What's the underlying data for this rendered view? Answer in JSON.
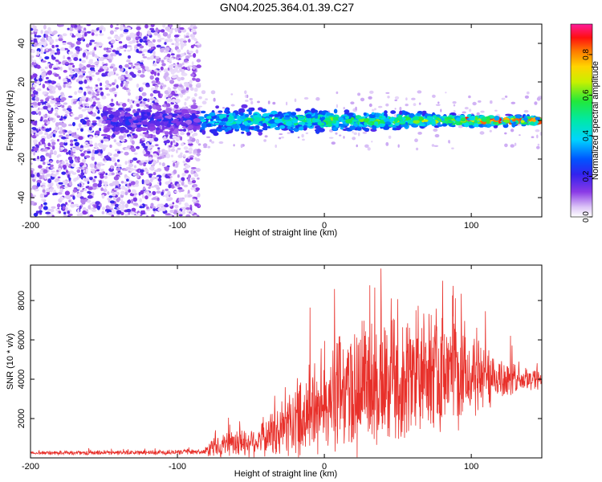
{
  "title": "GN04.2025.364.01.39.C27",
  "chart_data": [
    {
      "type": "heatmap",
      "xlabel": "Height of straight line (km)",
      "ylabel": "Frequency (Hz)",
      "xlim": [
        -200,
        148
      ],
      "ylim": [
        -50,
        50
      ],
      "xticks": [
        -200,
        -100,
        0,
        100
      ],
      "xtick_labels": [
        "-200",
        "-100",
        "0",
        "100"
      ],
      "yticks": [
        -40,
        -20,
        0,
        20,
        40
      ],
      "ytick_labels": [
        "-40",
        "-20",
        "0",
        "20",
        "40"
      ],
      "colorbar": {
        "label": "Normalized spectral amplitude",
        "range": [
          0,
          0.95
        ],
        "ticks": [
          0.0,
          0.2,
          0.4,
          0.6,
          0.8
        ],
        "tick_labels": [
          "0.0",
          "0.2",
          "0.4",
          "0.6",
          "0.8"
        ],
        "colormap": "rainbow (white-violet-blue-cyan-green-yellow-red-magenta)"
      },
      "features": {
        "noise_region_x": [
          -200,
          -85
        ],
        "ridge_center_hz": 0,
        "ridge_halfwidth_hz_near": 8,
        "ridge_halfwidth_hz_far": 2,
        "ridge_peak_amplitude": 0.9,
        "ridge_x": [
          -150,
          148
        ]
      }
    },
    {
      "type": "line",
      "xlabel": "Height of straight line (km)",
      "ylabel": "SNR (10 * v/v)",
      "xlim": [
        -200,
        148
      ],
      "ylim": [
        0,
        9800
      ],
      "xticks": [
        -200,
        -100,
        0,
        100
      ],
      "xtick_labels": [
        "-200",
        "-100",
        "0",
        "100"
      ],
      "yticks": [
        2000,
        4000,
        6000,
        8000
      ],
      "ytick_labels": [
        "2000",
        "4000",
        "6000",
        "8000"
      ],
      "color": "#e8302a",
      "series": [
        {
          "name": "SNR",
          "envelope_x": [
            -200,
            -150,
            -100,
            -82,
            -75,
            -60,
            -45,
            -30,
            -15,
            0,
            15,
            30,
            50,
            70,
            90,
            110,
            130,
            148
          ],
          "envelope_mean": [
            250,
            260,
            280,
            300,
            600,
            700,
            900,
            1400,
            2200,
            2900,
            3300,
            3700,
            4000,
            4200,
            4200,
            4100,
            4000,
            4000
          ],
          "envelope_spread": [
            80,
            120,
            120,
            150,
            600,
            700,
            900,
            1400,
            2300,
            2900,
            3400,
            3600,
            3400,
            3200,
            2800,
            1800,
            800,
            600
          ]
        }
      ]
    }
  ]
}
